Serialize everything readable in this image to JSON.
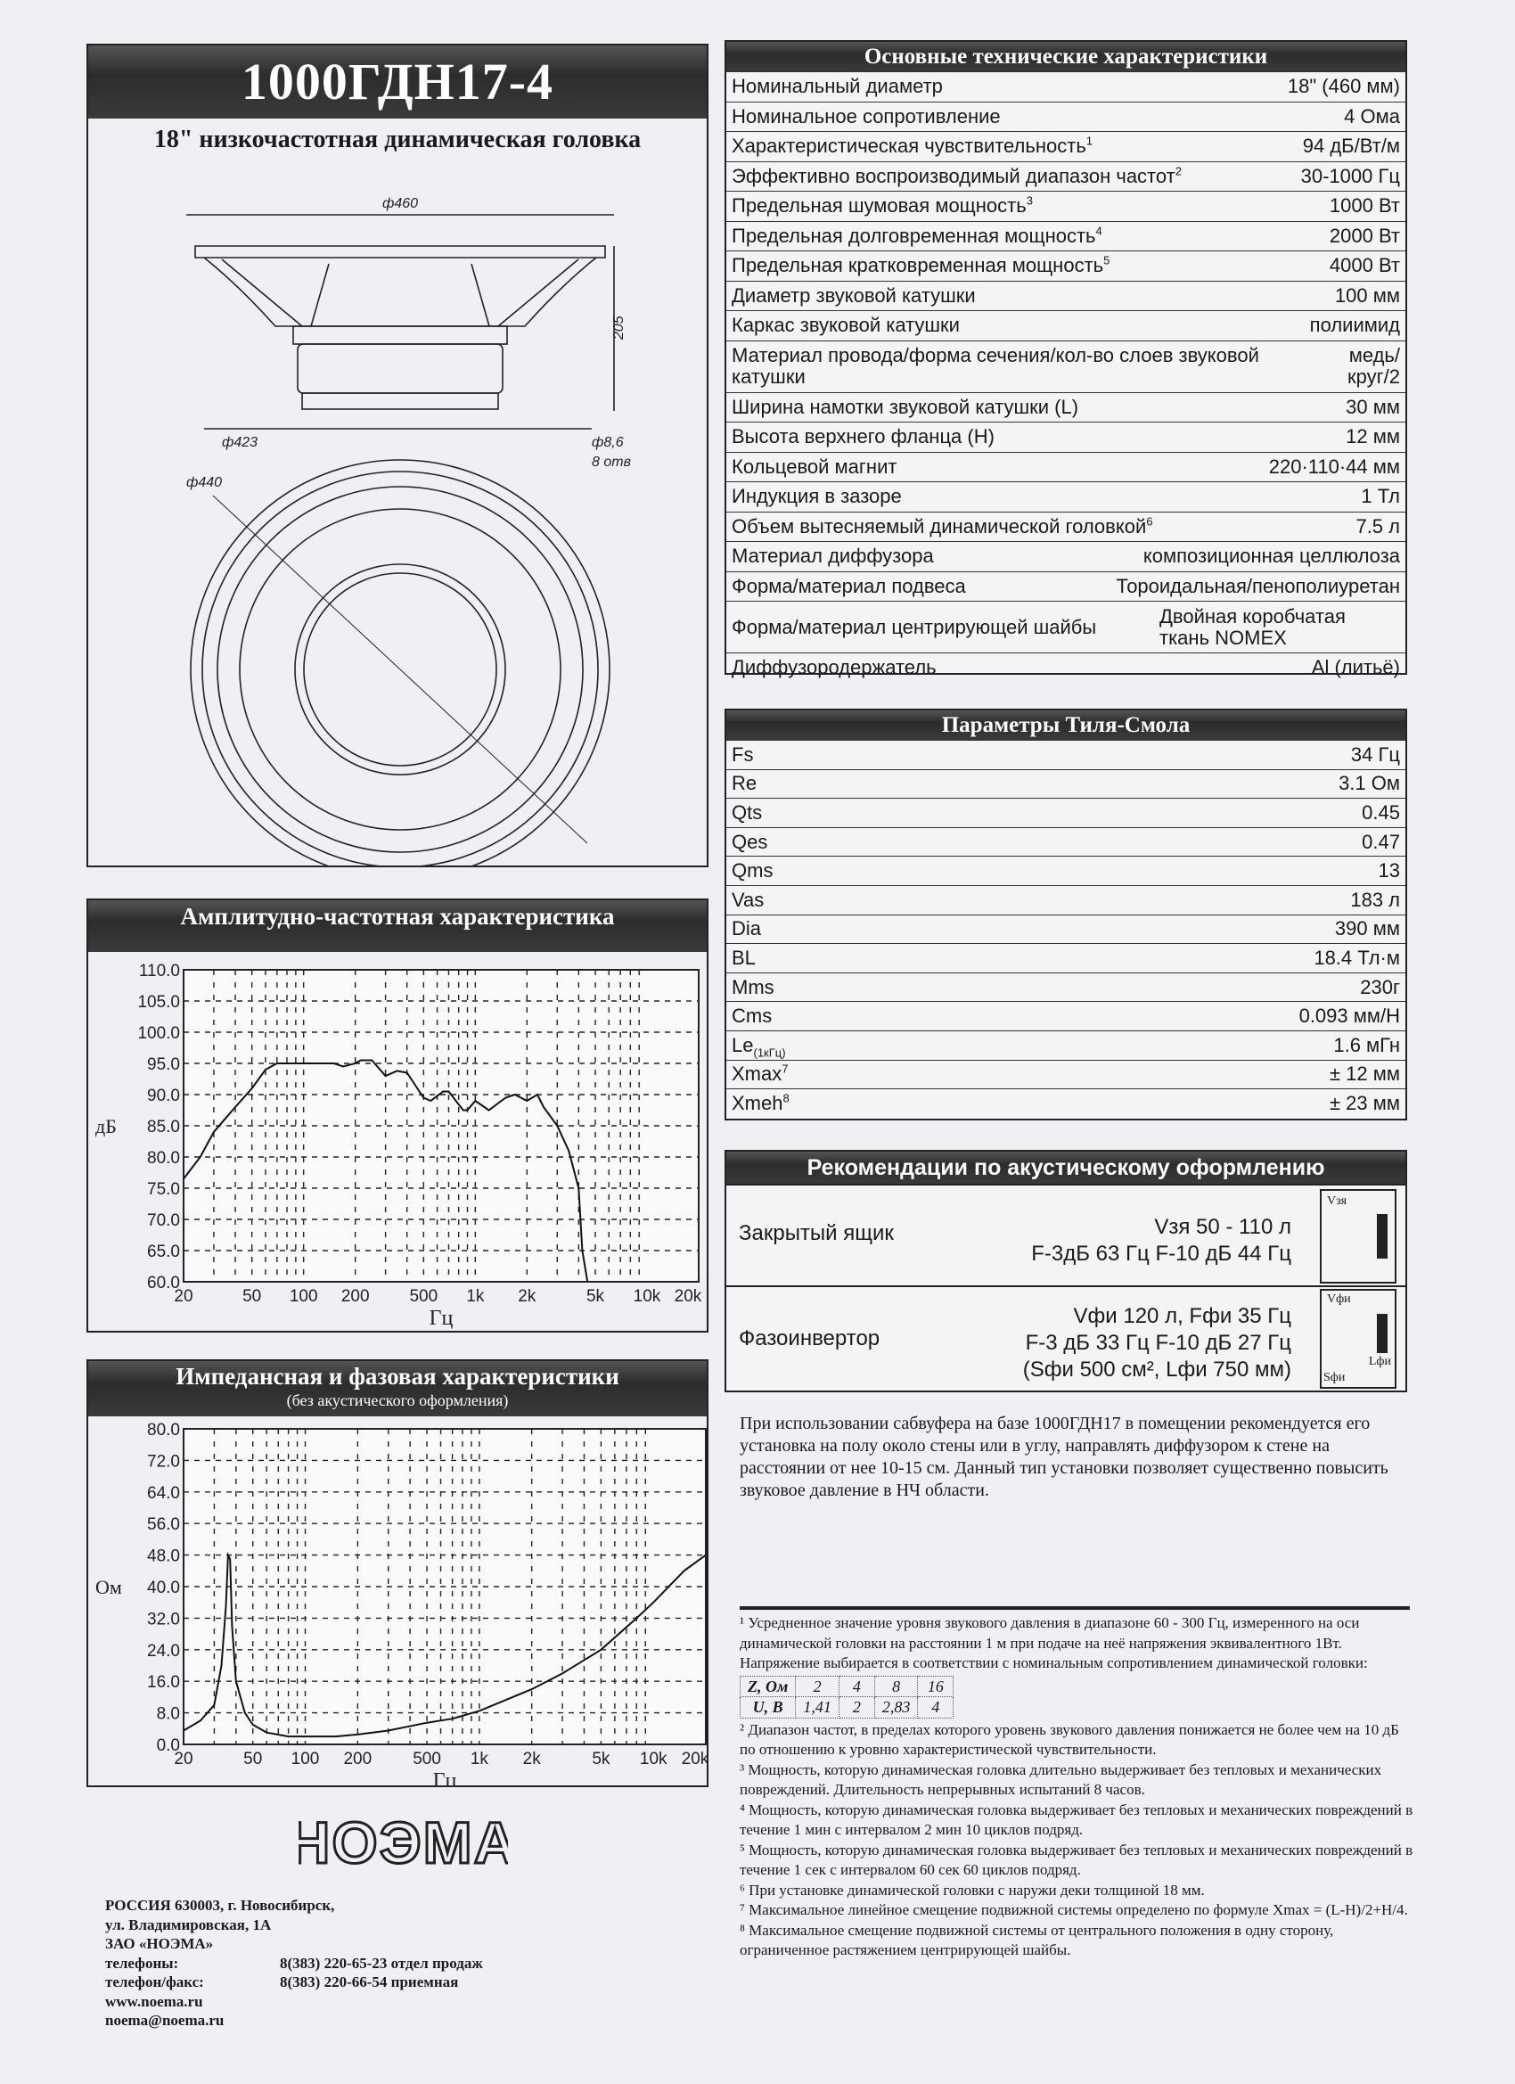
{
  "header": {
    "title": "1000ГДН17-4",
    "subtitle": "18\" низкочастотная динамическая головка"
  },
  "drawing": {
    "dim_outer": "ф460",
    "dim_height": "205",
    "dim_frame": "ф423",
    "dim_holes": "ф8,6",
    "holes_count": "8 отв",
    "dim_mount": "ф440"
  },
  "specs": {
    "title": "Основные технические характеристики",
    "rows": [
      {
        "k": "Номинальный диаметр",
        "v": "18\" (460 мм)"
      },
      {
        "k": "Номинальное сопротивление",
        "v": "4 Ома"
      },
      {
        "k": "Характеристическая чувствительность",
        "sup": "1",
        "v": "94 дБ/Вт/м"
      },
      {
        "k": "Эффективно воспроизводимый диапазон частот",
        "sup": "2",
        "v": "30-1000 Гц"
      },
      {
        "k": "Предельная шумовая мощность",
        "sup": "3",
        "v": "1000 Вт"
      },
      {
        "k": "Предельная долговременная мощность",
        "sup": "4",
        "v": "2000 Вт"
      },
      {
        "k": "Предельная кратковременная мощность",
        "sup": "5",
        "v": "4000 Вт"
      },
      {
        "k": "Диаметр звуковой катушки",
        "v": "100 мм"
      },
      {
        "k": "Каркас звуковой катушки",
        "v": "полиимид"
      },
      {
        "k": "Материал провода/форма сечения/кол-во слоев звуковой катушки",
        "v": "медь/круг/2",
        "tall": true
      },
      {
        "k": "Ширина намотки звуковой катушки (L)",
        "v": "30 мм"
      },
      {
        "k": "Высота верхнего фланца (H)",
        "v": "12 мм"
      },
      {
        "k": "Кольцевой магнит",
        "v": "220·110·44 мм"
      },
      {
        "k": "Индукция в зазоре",
        "v": "1 Тл"
      },
      {
        "k": "Объем вытесняемый динамической головкой",
        "sup": "6",
        "v": "7.5 л"
      },
      {
        "k": "Материал диффузора",
        "v": "композиционная целлюлоза"
      },
      {
        "k": "Форма/материал подвеса",
        "v": "Тороидальная/пенополиуретан"
      },
      {
        "k": "Форма/материал центрирующей шайбы",
        "v": "Двойная коробчатая ткань NOMEX",
        "tall": true
      },
      {
        "k": "Диффузородержатель",
        "v": "Al (литьё)"
      }
    ]
  },
  "ts": {
    "title": "Параметры Тиля-Смола",
    "rows": [
      {
        "k": "Fs",
        "v": "34 Гц"
      },
      {
        "k": "Re",
        "v": "3.1 Ом"
      },
      {
        "k": "Qts",
        "v": "0.45"
      },
      {
        "k": "Qes",
        "v": "0.47"
      },
      {
        "k": "Qms",
        "v": "13"
      },
      {
        "k": "Vas",
        "v": "183 л"
      },
      {
        "k": "Dia",
        "v": "390 мм"
      },
      {
        "k": "BL",
        "v": "18.4 Тл·м"
      },
      {
        "k": "Mms",
        "v": "230г"
      },
      {
        "k": "Cms",
        "v": "0.093 мм/Н"
      },
      {
        "k": "Le",
        "sub": "(1кГц)",
        "v": "1.6 мГн"
      },
      {
        "k": "Xmax",
        "sup": "7",
        "v": "± 12 мм"
      },
      {
        "k": "Xmeh",
        "sup": "8",
        "v": "± 23 мм"
      }
    ]
  },
  "recommend": {
    "title": "Рекомендации по акустическому оформлению",
    "closed": {
      "name": "Закрытый ящик",
      "line1": "Vзя 50 - 110 л",
      "line2": "F-3дБ 63 Гц F-10 дБ 44 Гц",
      "icon_label": "Vзя"
    },
    "ported": {
      "name": "Фазоинвертор",
      "line1": "Vфи 120 л, Fфи 35 Гц",
      "line2": "F-3 дБ 33 Гц F-10 дБ 27 Гц",
      "line3": "(Sфи 500 см², Lфи 750 мм)",
      "icon_v": "Vфи",
      "icon_l": "Lфи",
      "icon_s": "Sфи"
    }
  },
  "placement_note": "При использовании сабвуфера на базе 1000ГДН17 в помещении рекомендуется его установка на полу около стены или в углу, направлять диффузором к стене на расстоянии от нее 10-15 см. Данный тип установки позволяет существенно повысить звуковое давление в НЧ области.",
  "footnotes": {
    "f1": "¹ Усредненное значение уровня звукового давления в диапазоне 60 - 300 Гц, измеренного на оси динамической головки на расстоянии 1 м при подаче на неё напряжения эквивалентного 1Вт. Напряжение выбирается в соответствии с номинальным сопротивлением динамической головки:",
    "table": {
      "z_label": "Z, Ом",
      "z": [
        "2",
        "4",
        "8",
        "16"
      ],
      "u_label": "U, В",
      "u": [
        "1,41",
        "2",
        "2,83",
        "4"
      ]
    },
    "rest": [
      "² Диапазон частот, в пределах которого уровень звукового давления понижается не более чем на 10 дБ по отношению к уровню характеристической чувствительности.",
      "³ Мощность, которую динамическая головка длительно выдерживает без тепловых и механических повреждений. Длительность непрерывных испытаний 8 часов.",
      "⁴ Мощность, которую динамическая головка выдерживает без тепловых и механических повреждений в течение 1 мин с интервалом 2 мин 10 циклов подряд.",
      "⁵ Мощность, которую динамическая головка выдерживает без тепловых и механических повреждений в течение 1 сек с интервалом 60 сек 60 циклов подряд.",
      "⁶ При установке динамической головки с наружи деки толщиной 18 мм.",
      "⁷ Максимальное линейное смещение подвижной системы определено по формуле Xmax = (L-H)/2+H/4.",
      "⁸ Максимальное смещение подвижной системы от центрального положения в одну сторону, ограниченное растяжением центрирующей шайбы."
    ]
  },
  "logo": "НОЭМА",
  "address": {
    "l1": "РОССИЯ  630003, г. Новосибирск,",
    "l2": "ул. Владимировская, 1А",
    "l3": "ЗАО  «НОЭМА»",
    "phone_label": "телефоны:",
    "phone": "8(383) 220-65-23  отдел  продаж",
    "fax_label": "телефон/факс:",
    "fax": "8(383) 220-66-54  приемная",
    "web": "www.noema.ru",
    "email": "noema@noema.ru"
  },
  "chart_data": [
    {
      "type": "line",
      "title": "Амплитудно-частотная характеристика",
      "xlabel": "Гц",
      "ylabel": "дБ",
      "xscale": "log",
      "xlim": [
        20,
        20000
      ],
      "ylim": [
        60,
        110
      ],
      "grid": true,
      "xticks": [
        20,
        50,
        100,
        200,
        500,
        1000,
        2000,
        5000,
        10000,
        20000
      ],
      "xtick_labels": [
        "20",
        "50",
        "100",
        "200",
        "500",
        "1k",
        "2k",
        "5k",
        "10k",
        "20k"
      ],
      "yticks": [
        "60.0",
        "65.0",
        "70.0",
        "75.0",
        "80.0",
        "85.0",
        "90.0",
        "95.0",
        "100.0",
        "105.0",
        "110.0"
      ],
      "x": [
        20,
        25,
        30,
        40,
        50,
        60,
        70,
        100,
        150,
        170,
        200,
        215,
        250,
        300,
        350,
        400,
        500,
        550,
        650,
        700,
        850,
        900,
        1000,
        1200,
        1500,
        1700,
        2000,
        2300,
        2500,
        3000,
        3500,
        4000,
        4200,
        4500
      ],
      "y": [
        76.5,
        80,
        84,
        88,
        91,
        94,
        95,
        95,
        95,
        94.5,
        95,
        95.5,
        95.5,
        93,
        93.8,
        93.5,
        89.5,
        89,
        90.5,
        90.5,
        87.5,
        87.5,
        89,
        87.5,
        89.5,
        90,
        89,
        90,
        88,
        85,
        81,
        75,
        65,
        60
      ]
    },
    {
      "type": "line",
      "title": "Импедансная и фазовая характеристики",
      "subtitle": "(без акустического оформления)",
      "xlabel": "Гц",
      "ylabel": "Ом",
      "xscale": "log",
      "xlim": [
        20,
        20000
      ],
      "ylim": [
        0,
        80
      ],
      "grid": true,
      "xticks": [
        20,
        50,
        100,
        200,
        500,
        1000,
        2000,
        5000,
        10000,
        20000
      ],
      "xtick_labels": [
        "20",
        "50",
        "100",
        "200",
        "500",
        "1k",
        "2k",
        "5k",
        "10k",
        "20k"
      ],
      "yticks": [
        "0.0",
        "8.0",
        "16.0",
        "24.0",
        "32.0",
        "40.0",
        "48.0",
        "56.0",
        "64.0",
        "72.0",
        "80.0"
      ],
      "x": [
        20,
        25,
        30,
        33,
        35,
        36,
        37,
        38,
        40,
        45,
        50,
        60,
        80,
        100,
        150,
        200,
        300,
        500,
        700,
        1000,
        2000,
        3000,
        5000,
        8000,
        10000,
        15000,
        20000
      ],
      "y": [
        3.5,
        6,
        10,
        20,
        35,
        48,
        47,
        30,
        16,
        8,
        5,
        3,
        2,
        2,
        2,
        2.5,
        3.5,
        5.5,
        6.5,
        8.5,
        14,
        18,
        24,
        32,
        36,
        44,
        48
      ]
    }
  ]
}
